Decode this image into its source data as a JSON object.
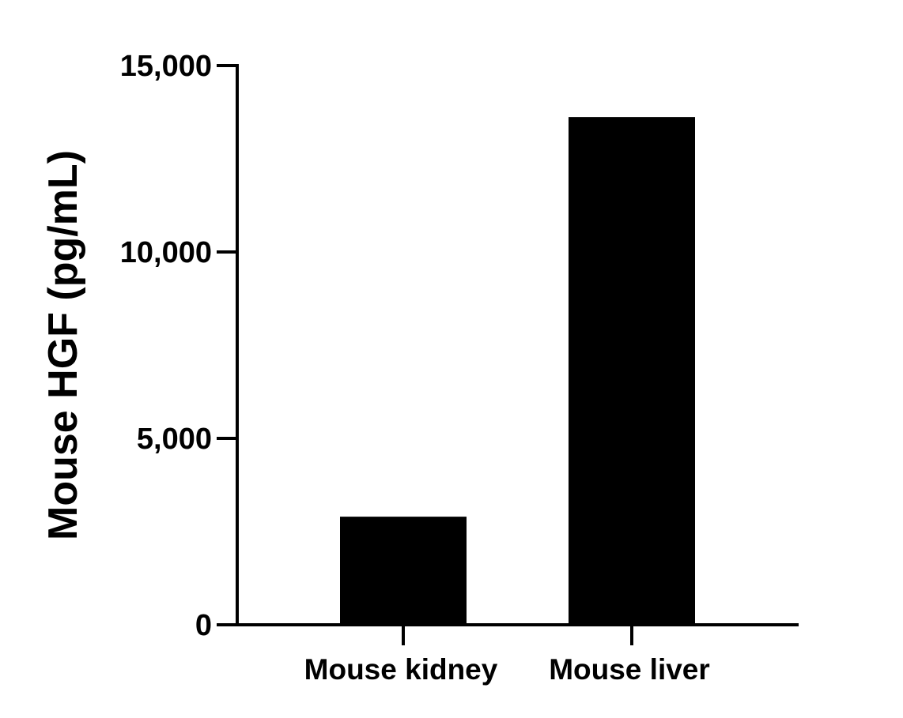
{
  "chart_data": {
    "type": "bar",
    "title": "",
    "xlabel": "",
    "ylabel": "Mouse HGF (pg/mL)",
    "categories": [
      "Mouse kidney",
      "Mouse liver"
    ],
    "values": [
      2900,
      13620
    ],
    "ylim": [
      0,
      15000
    ],
    "yticks": [
      0,
      5000,
      10000,
      15000
    ],
    "ytick_labels": [
      "0",
      "5,000",
      "10,000",
      "15,000"
    ],
    "grid": false,
    "legend": null,
    "bar_color": "#000000"
  }
}
